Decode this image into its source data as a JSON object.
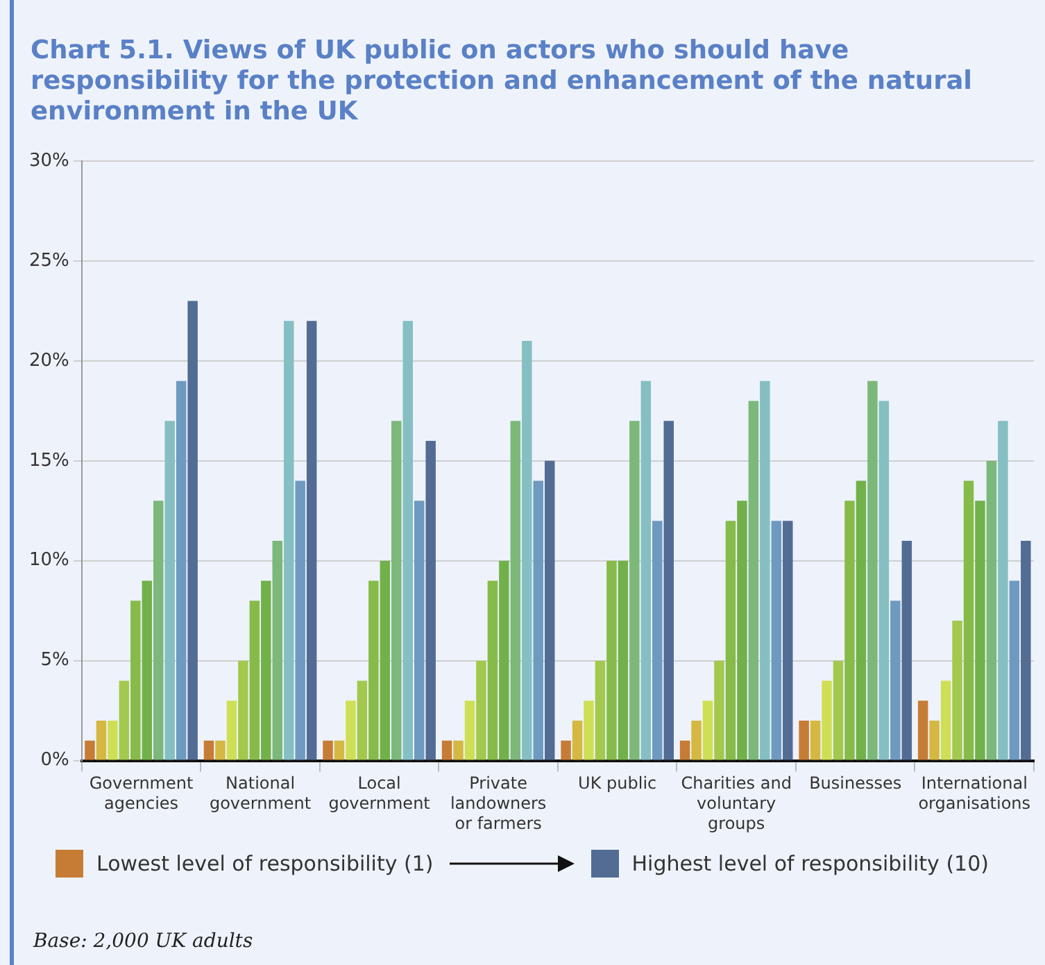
{
  "chart_data": {
    "type": "bar",
    "title": "Chart 5.1. Views of UK public on actors who should have responsibility for the protection and enhancement of the natural environment in the UK",
    "categories": [
      "Government agencies",
      "National government",
      "Local government",
      "Private landowners or farmers",
      "UK public",
      "Charities and voluntary groups",
      "Businesses",
      "International organisations"
    ],
    "series": [
      {
        "name": "Lowest level of responsibility (1)",
        "color": "#c77c35",
        "values": [
          1,
          1,
          1,
          1,
          1,
          1,
          2,
          3
        ]
      },
      {
        "color": "#d4b842",
        "values": [
          2,
          1,
          1,
          1,
          2,
          2,
          2,
          2
        ]
      },
      {
        "color": "#cfdf55",
        "values": [
          2,
          3,
          3,
          3,
          3,
          3,
          4,
          4
        ]
      },
      {
        "color": "#a3c84e",
        "values": [
          4,
          5,
          4,
          5,
          5,
          5,
          5,
          7
        ]
      },
      {
        "color": "#86bb4a",
        "values": [
          8,
          8,
          9,
          9,
          10,
          12,
          13,
          14
        ]
      },
      {
        "color": "#72b14a",
        "values": [
          9,
          9,
          10,
          10,
          10,
          13,
          14,
          13
        ]
      },
      {
        "color": "#7bb87a",
        "values": [
          13,
          11,
          17,
          17,
          17,
          18,
          19,
          15
        ]
      },
      {
        "color": "#85bfc2",
        "values": [
          17,
          22,
          22,
          21,
          19,
          19,
          18,
          17
        ]
      },
      {
        "color": "#6f9abf",
        "values": [
          19,
          14,
          13,
          14,
          12,
          12,
          8,
          9
        ]
      },
      {
        "name": "Highest level of responsibility (10)",
        "color": "#536c94",
        "values": [
          23,
          22,
          16,
          15,
          17,
          12,
          11,
          11
        ]
      }
    ],
    "ylim": [
      0,
      30
    ],
    "yticks": [
      {
        "value": 0,
        "label": "0%"
      },
      {
        "value": 5,
        "label": "5%"
      },
      {
        "value": 10,
        "label": "10%"
      },
      {
        "value": 15,
        "label": "15%"
      },
      {
        "value": 20,
        "label": "20%"
      },
      {
        "value": 25,
        "label": "25%"
      },
      {
        "value": 30,
        "label": "30%"
      }
    ],
    "grid": "y",
    "legend": "bottom",
    "annotations": [
      "Base: 2,000 UK adults"
    ]
  }
}
